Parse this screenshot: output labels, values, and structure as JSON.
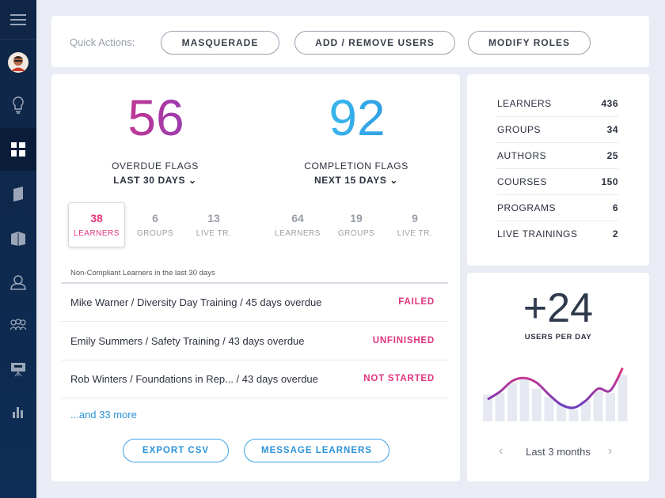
{
  "sidebar": {
    "items": [
      {
        "icon": "menu-icon"
      },
      {
        "icon": "avatar"
      },
      {
        "icon": "lightbulb-icon"
      },
      {
        "icon": "dashboard-icon",
        "active": true
      },
      {
        "icon": "book-icon"
      },
      {
        "icon": "books-icon"
      },
      {
        "icon": "user-icon"
      },
      {
        "icon": "users-icon"
      },
      {
        "icon": "presentation-icon"
      },
      {
        "icon": "bar-chart-icon"
      }
    ]
  },
  "quick_actions": {
    "label": "Quick Actions:",
    "buttons": [
      "MASQUERADE",
      "ADD / REMOVE USERS",
      "MODIFY ROLES"
    ]
  },
  "overdue": {
    "value": "56",
    "label": "OVERDUE FLAGS",
    "period": "LAST 30 DAYS",
    "stats": [
      {
        "n": "38",
        "t": "LEARNERS",
        "selected": true
      },
      {
        "n": "6",
        "t": "GROUPS"
      },
      {
        "n": "13",
        "t": "LIVE TR."
      }
    ]
  },
  "completion": {
    "value": "92",
    "label": "COMPLETION FLAGS",
    "period": "NEXT 15 DAYS",
    "stats": [
      {
        "n": "64",
        "t": "LEARNERS"
      },
      {
        "n": "19",
        "t": "GROUPS"
      },
      {
        "n": "9",
        "t": "LIVE TR."
      }
    ]
  },
  "list": {
    "caption": "Non-Compliant Learners in the last 30 days",
    "rows": [
      {
        "text": "Mike Warner  /  Diversity Day Training  /  45 days overdue",
        "status": "FAILED"
      },
      {
        "text": "Emily Summers  /  Safety Training  /  43 days overdue",
        "status": "UNFINISHED"
      },
      {
        "text": "Rob Winters  /  Foundations in Rep...  /  43 days overdue",
        "status": "NOT STARTED"
      }
    ],
    "more": "...and 33 more",
    "export": "EXPORT CSV",
    "message": "MESSAGE LEARNERS"
  },
  "totals": [
    {
      "label": "LEARNERS",
      "value": "436"
    },
    {
      "label": "GROUPS",
      "value": "34"
    },
    {
      "label": "AUTHORS",
      "value": "25"
    },
    {
      "label": "COURSES",
      "value": "150"
    },
    {
      "label": "PROGRAMS",
      "value": "6"
    },
    {
      "label": "LIVE TRAININGS",
      "value": "2"
    }
  ],
  "users_per_day": {
    "value": "+24",
    "label": "USERS PER DAY",
    "period": "Last 3 months",
    "prev_icon": "chevron-left-icon",
    "next_icon": "chevron-right-icon"
  },
  "chart_data": {
    "type": "bar",
    "bars": [
      45,
      48,
      65,
      73,
      55,
      41,
      31,
      21,
      35,
      51,
      48,
      78
    ],
    "trend_line": [
      37,
      50,
      68,
      73,
      65,
      45,
      28,
      23,
      35,
      55,
      52,
      90
    ],
    "ylim": [
      0,
      100
    ],
    "grid": false,
    "colors": {
      "bars": "#e6e9f1",
      "line_start": "#e0357f",
      "line_end": "#6a3cc0"
    }
  },
  "colors": {
    "accent_pink": "#e0357f",
    "accent_blue": "#2b93da",
    "sidebar": "#0f2646"
  }
}
